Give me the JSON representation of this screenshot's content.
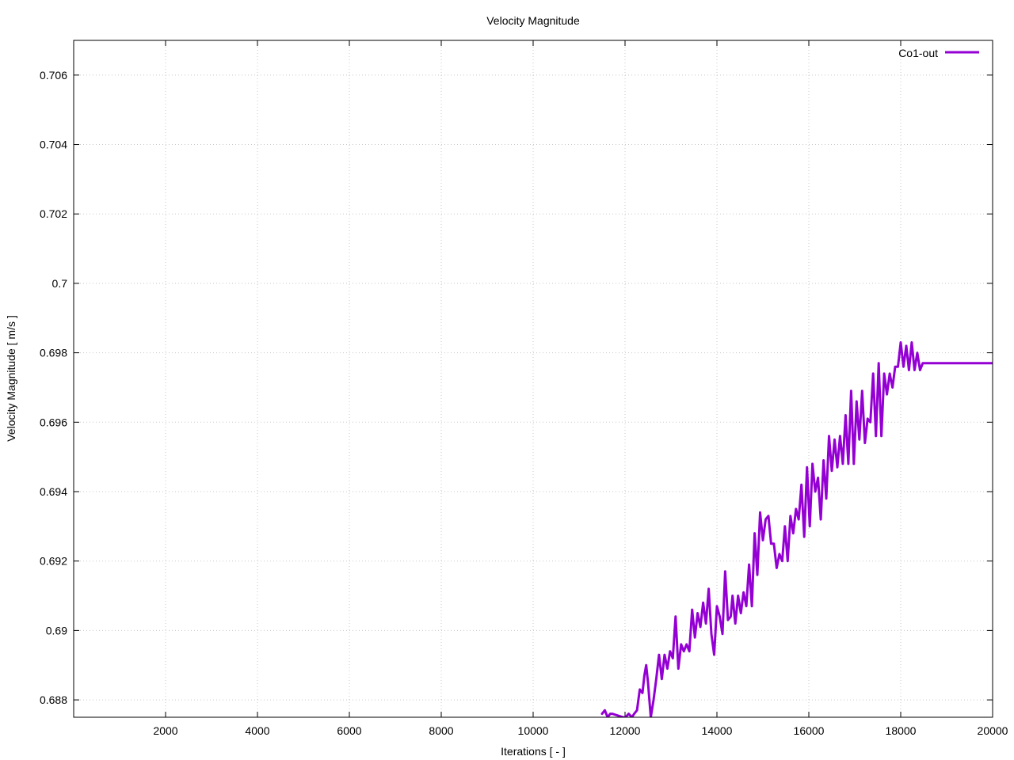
{
  "chart_data": {
    "type": "line",
    "title": "Velocity Magnitude",
    "xlabel": "Iterations [ - ]",
    "ylabel": "Velocity Magnitude [ m/s ]",
    "xlim": [
      0,
      20000
    ],
    "ylim": [
      0.6875,
      0.707
    ],
    "x_ticks": [
      2000,
      4000,
      6000,
      8000,
      10000,
      12000,
      14000,
      16000,
      18000,
      20000
    ],
    "x_tick_labels": [
      "2000",
      "4000",
      "6000",
      "8000",
      "10000",
      "12000",
      "14000",
      "16000",
      "18000",
      "20000"
    ],
    "y_ticks": [
      0.688,
      0.69,
      0.692,
      0.694,
      0.696,
      0.698,
      0.7,
      0.702,
      0.704,
      0.706
    ],
    "y_tick_labels": [
      "0.688",
      "0.69",
      "0.692",
      "0.694",
      "0.696",
      "0.698",
      "0.7",
      "0.702",
      "0.704",
      "0.706"
    ],
    "grid": true,
    "legend_position": "top-right",
    "series": [
      {
        "name": "Co1-out",
        "color": "#9400d3",
        "x": [
          11500,
          11560,
          11620,
          11680,
          11720,
          11960,
          12010,
          12080,
          12150,
          12200,
          12260,
          12320,
          12380,
          12420,
          12460,
          12500,
          12560,
          12620,
          12680,
          12740,
          12800,
          12860,
          12920,
          12980,
          13040,
          13100,
          13160,
          13220,
          13280,
          13340,
          13400,
          13460,
          13520,
          13580,
          13640,
          13700,
          13760,
          13820,
          13880,
          13940,
          14000,
          14060,
          14120,
          14180,
          14240,
          14300,
          14340,
          14400,
          14460,
          14520,
          14580,
          14640,
          14700,
          14760,
          14820,
          14880,
          14940,
          15000,
          15060,
          15120,
          15180,
          15240,
          15300,
          15360,
          15420,
          15480,
          15540,
          15600,
          15660,
          15720,
          15780,
          15840,
          15900,
          15960,
          16020,
          16080,
          16140,
          16200,
          16260,
          16320,
          16380,
          16440,
          16500,
          16560,
          16620,
          16680,
          16740,
          16800,
          16860,
          16920,
          16980,
          17040,
          17100,
          17160,
          17220,
          17280,
          17340,
          17400,
          17460,
          17520,
          17580,
          17640,
          17700,
          17760,
          17820,
          17880,
          17940,
          18000,
          18060,
          18120,
          18180,
          18240,
          18300,
          18360,
          18420,
          18480,
          18540,
          18600,
          18660,
          18720,
          18780,
          18840,
          18900,
          18960,
          19020,
          19080,
          19140,
          19200,
          19260,
          19320,
          19380,
          19440,
          19500,
          19560,
          19620,
          19680,
          19740,
          19800,
          19860,
          19920,
          19980,
          20000
        ],
        "y": [
          0.6876,
          0.6877,
          0.6875,
          0.6876,
          0.6876,
          0.6875,
          0.6875,
          0.6876,
          0.6875,
          0.6876,
          0.6877,
          0.6883,
          0.6882,
          0.6887,
          0.689,
          0.6885,
          0.6875,
          0.688,
          0.6886,
          0.6893,
          0.6886,
          0.6893,
          0.6889,
          0.6894,
          0.6892,
          0.6904,
          0.6889,
          0.6896,
          0.6894,
          0.6896,
          0.6894,
          0.6906,
          0.6898,
          0.6905,
          0.6901,
          0.6908,
          0.6902,
          0.6912,
          0.6899,
          0.6893,
          0.6907,
          0.6904,
          0.6899,
          0.6917,
          0.6903,
          0.6904,
          0.691,
          0.6902,
          0.691,
          0.6905,
          0.6911,
          0.6907,
          0.6919,
          0.6907,
          0.6928,
          0.6916,
          0.6934,
          0.6926,
          0.6932,
          0.6933,
          0.6925,
          0.6925,
          0.6918,
          0.6922,
          0.692,
          0.693,
          0.692,
          0.6933,
          0.6928,
          0.6935,
          0.6932,
          0.6942,
          0.6927,
          0.6947,
          0.693,
          0.6948,
          0.694,
          0.6944,
          0.6932,
          0.6949,
          0.6938,
          0.6956,
          0.6946,
          0.6955,
          0.6947,
          0.6956,
          0.6948,
          0.6962,
          0.6948,
          0.6969,
          0.6948,
          0.6966,
          0.6955,
          0.6969,
          0.6954,
          0.6961,
          0.696,
          0.6974,
          0.6956,
          0.6977,
          0.6956,
          0.6974,
          0.6968,
          0.6974,
          0.697,
          0.6976,
          0.6976,
          0.6983,
          0.6976,
          0.6982,
          0.6975,
          0.6983,
          0.6975,
          0.698,
          0.6975,
          0.6977,
          0.6977,
          0.6977,
          0.6977,
          0.6977,
          0.6977,
          0.6977,
          0.6977,
          0.6977,
          0.6977,
          0.6977,
          0.6977,
          0.6977,
          0.6977,
          0.6977,
          0.6977,
          0.6977,
          0.6977,
          0.6977,
          0.6977,
          0.6977,
          0.6977,
          0.6977,
          0.6977,
          0.6977,
          0.6977,
          0.6977
        ]
      }
    ]
  }
}
